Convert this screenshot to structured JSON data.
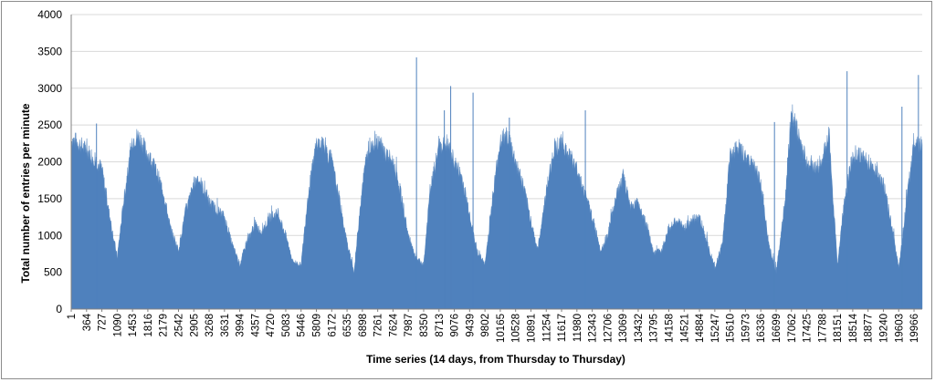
{
  "chart_data": {
    "type": "area",
    "title": "",
    "xlabel": "Time series (14 days, from Thursday to Thursday)",
    "ylabel": "Total number of entries per minute",
    "ylim": [
      0,
      4000
    ],
    "xlim": [
      1,
      20160
    ],
    "yticks": [
      0,
      500,
      1000,
      1500,
      2000,
      2500,
      3000,
      3500,
      4000
    ],
    "xtick_labels": [
      1,
      364,
      727,
      1090,
      1453,
      1816,
      2179,
      2542,
      2905,
      3268,
      3631,
      3994,
      4357,
      4720,
      5083,
      5446,
      5809,
      6172,
      6535,
      6898,
      7261,
      7624,
      7987,
      8350,
      8713,
      9076,
      9439,
      9802,
      10165,
      10528,
      10891,
      11254,
      11617,
      11980,
      12343,
      12706,
      13069,
      13432,
      13795,
      14158,
      14521,
      14884,
      15247,
      15610,
      15973,
      16336,
      16699,
      17062,
      17425,
      17788,
      18151,
      18514,
      18877,
      19240,
      19603,
      19966
    ],
    "grid": "horizontal",
    "legend": "none",
    "color": "#4f81bd",
    "series": [
      {
        "x": [
          1,
          180,
          364,
          545,
          727,
          900,
          1090,
          1250,
          1453,
          1600,
          1816,
          2000,
          2179,
          2350,
          2542,
          2700,
          2905,
          3000,
          3268,
          3450,
          3631,
          3800,
          3994,
          4150,
          4357,
          4500,
          4720,
          4900,
          5083,
          5250,
          5446,
          5600,
          5809,
          6000,
          6172,
          6350,
          6535,
          6700,
          6898,
          7050,
          7261,
          7450,
          7624,
          7800,
          7987,
          8150,
          8350,
          8500,
          8713,
          8900,
          9076,
          9250,
          9439,
          9600,
          9802,
          9980,
          10165,
          10350,
          10528,
          10700,
          10891,
          11050,
          11254,
          11450,
          11617,
          11800,
          11980,
          12150,
          12343,
          12550,
          12706,
          12900,
          13069,
          13250,
          13432,
          13600,
          13795,
          13980,
          14158,
          14350,
          14521,
          14700,
          14884,
          15050,
          15247,
          15430,
          15610,
          15800,
          15973,
          16150,
          16336,
          16520,
          16699,
          16900,
          17062,
          17250,
          17425,
          17600,
          17788,
          17950,
          18151,
          18300,
          18514,
          18700,
          18877,
          19050,
          19240,
          19420,
          19603,
          19800,
          19966,
          20160
        ],
        "y": [
          2300,
          2250,
          2150,
          2050,
          1900,
          1300,
          700,
          1500,
          2300,
          2350,
          2100,
          1900,
          1600,
          1100,
          800,
          1300,
          1700,
          1800,
          1450,
          1350,
          1250,
          900,
          600,
          900,
          1150,
          1050,
          1250,
          1300,
          1000,
          650,
          600,
          1500,
          2250,
          2200,
          2000,
          1500,
          900,
          500,
          1700,
          2200,
          2300,
          2100,
          2000,
          1600,
          1000,
          700,
          600,
          1600,
          2200,
          2250,
          2000,
          1800,
          1300,
          800,
          600,
          1500,
          2300,
          2350,
          2000,
          1700,
          1200,
          800,
          1600,
          2200,
          2250,
          2100,
          1900,
          1600,
          1250,
          800,
          1000,
          1500,
          1800,
          1400,
          1450,
          1200,
          750,
          800,
          1100,
          1200,
          1100,
          1200,
          1250,
          950,
          550,
          900,
          2100,
          2200,
          2050,
          2000,
          1700,
          900,
          500,
          1400,
          2700,
          2300,
          2000,
          1900,
          2000,
          2400,
          600,
          1400,
          2100,
          2100,
          2000,
          1900,
          1700,
          1200,
          550,
          1500,
          2300,
          2200
        ]
      }
    ],
    "spikes": [
      {
        "x": 600,
        "y": 2520
      },
      {
        "x": 8180,
        "y": 3420
      },
      {
        "x": 8840,
        "y": 2700
      },
      {
        "x": 8990,
        "y": 3030
      },
      {
        "x": 9520,
        "y": 2940
      },
      {
        "x": 10380,
        "y": 2600
      },
      {
        "x": 12180,
        "y": 2700
      },
      {
        "x": 16660,
        "y": 2540
      },
      {
        "x": 18380,
        "y": 3230
      },
      {
        "x": 19680,
        "y": 2750
      },
      {
        "x": 20070,
        "y": 3180
      }
    ]
  }
}
